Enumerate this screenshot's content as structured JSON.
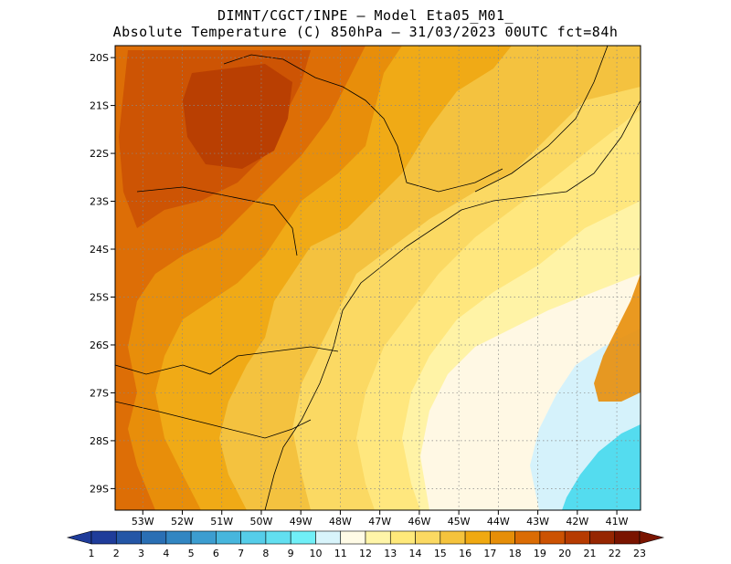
{
  "title": {
    "line1": "DIMNT/CGCT/INPE –  Model Eta05_M01_",
    "line2": "Absolute Temperature (C) 850hPa –  31/03/2023 00UTC fct=84h"
  },
  "axes": {
    "lat_ticks": [
      "20S",
      "21S",
      "22S",
      "23S",
      "24S",
      "25S",
      "26S",
      "27S",
      "28S",
      "29S"
    ],
    "lon_ticks": [
      "53W",
      "52W",
      "51W",
      "50W",
      "49W",
      "48W",
      "47W",
      "46W",
      "45W",
      "44W",
      "43W",
      "42W",
      "41W"
    ],
    "lat_range": [
      -29.45,
      -19.75
    ],
    "lon_range": [
      -53.7,
      -40.4
    ],
    "grid": true
  },
  "colorbar": {
    "labels": [
      "1",
      "2",
      "3",
      "4",
      "5",
      "6",
      "7",
      "8",
      "9",
      "10",
      "11",
      "12",
      "13",
      "14",
      "15",
      "16",
      "17",
      "18",
      "19",
      "20",
      "21",
      "22",
      "23"
    ],
    "colors": [
      "#1f3c9a",
      "#2456a6",
      "#2a6fb4",
      "#3286c2",
      "#3c9dd0",
      "#47b6dd",
      "#55cde9",
      "#62dff0",
      "#70eff7",
      "#d8f4fb",
      "#fffbe6",
      "#fff5a8",
      "#ffe97a",
      "#fbd962",
      "#f5c33c",
      "#f0a911",
      "#e68e08",
      "#db6c04",
      "#cc5202",
      "#b63b01",
      "#962601",
      "#7a1400"
    ]
  },
  "colors": {
    "c11": "#fff8e4",
    "c12": "#fff3a6",
    "c13": "#ffe77e",
    "c14": "#fbd963",
    "c15": "#f4c23f",
    "c16": "#f0aa16",
    "c17": "#e88e0a",
    "c18": "#dd6e06",
    "c19": "#cd5404",
    "c20": "#b93f02",
    "cyan": "#54dcef",
    "lightblue": "#d5f2fb"
  }
}
